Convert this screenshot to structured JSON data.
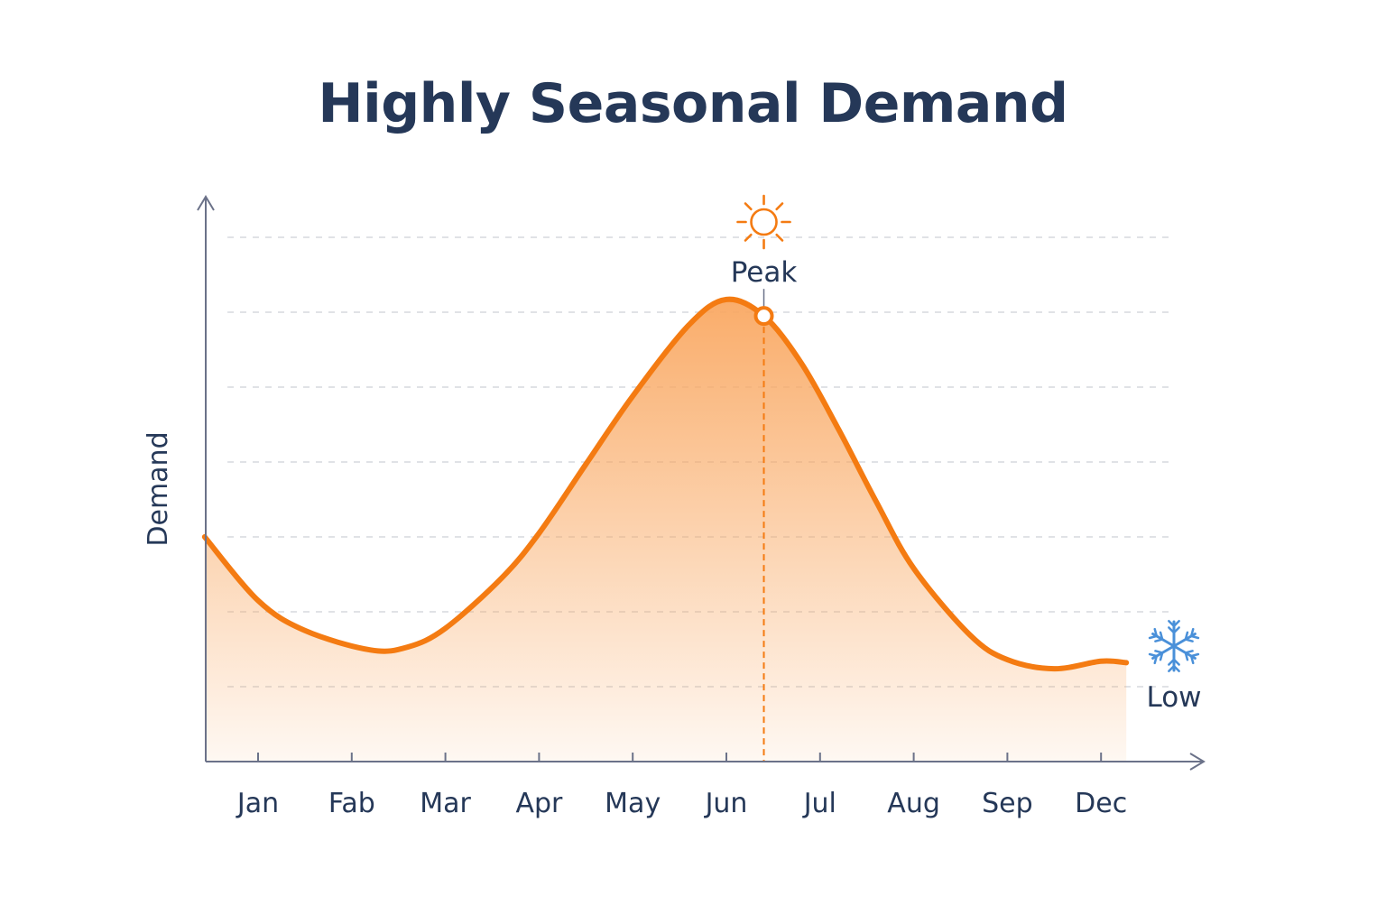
{
  "chart_data": {
    "type": "area",
    "title": "Highly Seasonal Demand",
    "ylabel": "Demand",
    "xlabel": "",
    "categories": [
      "Jan",
      "Fab",
      "Mar",
      "Apr",
      "May",
      "Jun",
      "Jul",
      "Aug",
      "Sep",
      "Dec"
    ],
    "ylim": [
      0,
      7
    ],
    "grid": true,
    "series": [
      {
        "x": [
          -0.57,
          0.0,
          0.5,
          1.2,
          1.6,
          2.0,
          2.6,
          3.0,
          3.5,
          4.0,
          4.6,
          5.0,
          5.4,
          5.8,
          6.2,
          6.6,
          7.0,
          7.6,
          8.0,
          8.5,
          9.0,
          9.27
        ],
        "values": [
          3.0,
          2.15,
          1.75,
          1.49,
          1.53,
          1.78,
          2.45,
          3.05,
          3.97,
          4.88,
          5.83,
          6.17,
          5.95,
          5.32,
          4.43,
          3.47,
          2.58,
          1.69,
          1.36,
          1.24,
          1.34,
          1.32
        ]
      }
    ],
    "annotations": {
      "peak": {
        "label": "Peak",
        "x": 5.4,
        "y": 5.95,
        "icon": "sun-icon",
        "color": "#F47B12"
      },
      "low": {
        "label": "Low",
        "x": 9.27,
        "y": 1.32,
        "icon": "snowflake-icon",
        "color": "#4A90D9"
      }
    },
    "colors": {
      "line": "#F47B12",
      "fill": "#F9A862",
      "axis": "#6B7289",
      "grid": "#D5D8DE",
      "text": "#253858"
    }
  }
}
